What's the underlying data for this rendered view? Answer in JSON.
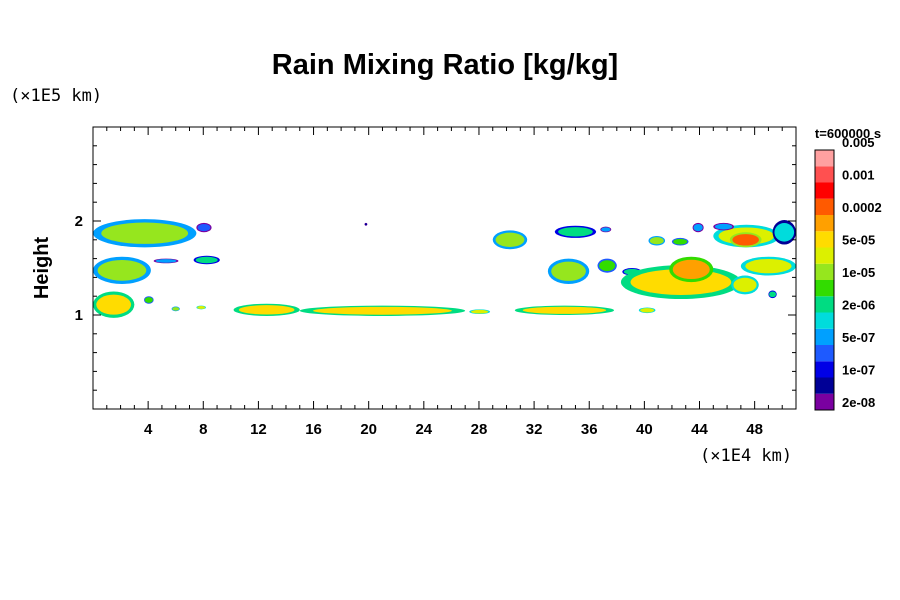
{
  "chart_data": {
    "type": "heatmap",
    "title": "Rain Mixing Ratio [kg/kg]",
    "ylabel": "Height",
    "y_scale_note": "(×1E5 km)",
    "x_scale_note": "(×1E4 km)",
    "time_label": "t=600000 s",
    "xlim": [
      0,
      51
    ],
    "ylim": [
      0,
      3
    ],
    "x_ticks": [
      4,
      8,
      12,
      16,
      20,
      24,
      28,
      32,
      36,
      40,
      44,
      48
    ],
    "y_ticks": [
      1,
      2
    ],
    "colorbar": {
      "colors": [
        "#7a00a0",
        "#000096",
        "#0000e6",
        "#1e5aff",
        "#00a0ff",
        "#00dcdc",
        "#00dc82",
        "#32dc00",
        "#96e61e",
        "#dcf000",
        "#ffdc00",
        "#ffa000",
        "#ff5a00",
        "#ff0000",
        "#ff5050",
        "#ffa0a0"
      ],
      "labels": [
        "2e-08",
        "1e-07",
        "5e-07",
        "2e-06",
        "1e-05",
        "5e-05",
        "0.0002",
        "0.001",
        "0.005"
      ]
    },
    "regions": [
      {
        "x": [
          0.0,
          7.5
        ],
        "y": [
          1.72,
          2.02
        ],
        "level": 8
      },
      {
        "x": [
          7.5,
          8.6
        ],
        "y": [
          1.88,
          1.98
        ],
        "level": 3
      },
      {
        "x": [
          0.0,
          4.2
        ],
        "y": [
          1.33,
          1.62
        ],
        "level": 8
      },
      {
        "x": [
          4.4,
          6.2
        ],
        "y": [
          1.55,
          1.6
        ],
        "level": 4
      },
      {
        "x": [
          7.3,
          9.2
        ],
        "y": [
          1.54,
          1.63
        ],
        "level": 6
      },
      {
        "x": [
          0.0,
          3.0
        ],
        "y": [
          0.97,
          1.25
        ],
        "level": 10
      },
      {
        "x": [
          3.7,
          4.4
        ],
        "y": [
          1.12,
          1.2
        ],
        "level": 7
      },
      {
        "x": [
          5.7,
          6.3
        ],
        "y": [
          1.04,
          1.09
        ],
        "level": 8
      },
      {
        "x": [
          7.5,
          8.2
        ],
        "y": [
          1.06,
          1.1
        ],
        "level": 9
      },
      {
        "x": [
          10.2,
          15.0
        ],
        "y": [
          0.99,
          1.12
        ],
        "level": 10
      },
      {
        "x": [
          15.0,
          27.0
        ],
        "y": [
          0.99,
          1.1
        ],
        "level": 10
      },
      {
        "x": [
          27.3,
          28.8
        ],
        "y": [
          1.01,
          1.06
        ],
        "level": 9
      },
      {
        "x": [
          19.7,
          19.9
        ],
        "y": [
          1.95,
          1.98
        ],
        "level": 1
      },
      {
        "x": [
          29.0,
          31.5
        ],
        "y": [
          1.7,
          1.9
        ],
        "level": 8
      },
      {
        "x": [
          30.6,
          37.8
        ],
        "y": [
          1.0,
          1.1
        ],
        "level": 10
      },
      {
        "x": [
          33.5,
          36.5
        ],
        "y": [
          1.82,
          1.95
        ],
        "level": 6
      },
      {
        "x": [
          36.8,
          37.6
        ],
        "y": [
          1.88,
          1.94
        ],
        "level": 4
      },
      {
        "x": [
          33.0,
          36.0
        ],
        "y": [
          1.33,
          1.6
        ],
        "level": 8
      },
      {
        "x": [
          36.6,
          38.0
        ],
        "y": [
          1.45,
          1.6
        ],
        "level": 7
      },
      {
        "x": [
          38.4,
          39.8
        ],
        "y": [
          1.42,
          1.5
        ],
        "level": 6
      },
      {
        "x": [
          40.3,
          41.5
        ],
        "y": [
          1.74,
          1.84
        ],
        "level": 8
      },
      {
        "x": [
          38.3,
          47.0
        ],
        "y": [
          1.17,
          1.53
        ],
        "level": 10
      },
      {
        "x": [
          41.8,
          45.0
        ],
        "y": [
          1.35,
          1.62
        ],
        "level": 11
      },
      {
        "x": [
          42.0,
          43.2
        ],
        "y": [
          1.74,
          1.82
        ],
        "level": 7
      },
      {
        "x": [
          43.5,
          44.3
        ],
        "y": [
          1.88,
          1.98
        ],
        "level": 4
      },
      {
        "x": [
          45.0,
          49.8
        ],
        "y": [
          1.72,
          1.96
        ],
        "level": 9
      },
      {
        "x": [
          46.2,
          48.5
        ],
        "y": [
          1.72,
          1.88
        ],
        "level": 12
      },
      {
        "x": [
          45.0,
          46.5
        ],
        "y": [
          1.9,
          1.98
        ],
        "level": 4
      },
      {
        "x": [
          49.3,
          51.0
        ],
        "y": [
          1.75,
          2.01
        ],
        "level": 5
      },
      {
        "x": [
          47.0,
          51.0
        ],
        "y": [
          1.42,
          1.62
        ],
        "level": 9
      },
      {
        "x": [
          46.3,
          48.3
        ],
        "y": [
          1.22,
          1.42
        ],
        "level": 9
      },
      {
        "x": [
          49.0,
          49.6
        ],
        "y": [
          1.18,
          1.26
        ],
        "level": 6
      },
      {
        "x": [
          39.6,
          40.8
        ],
        "y": [
          1.02,
          1.08
        ],
        "level": 9
      }
    ]
  }
}
